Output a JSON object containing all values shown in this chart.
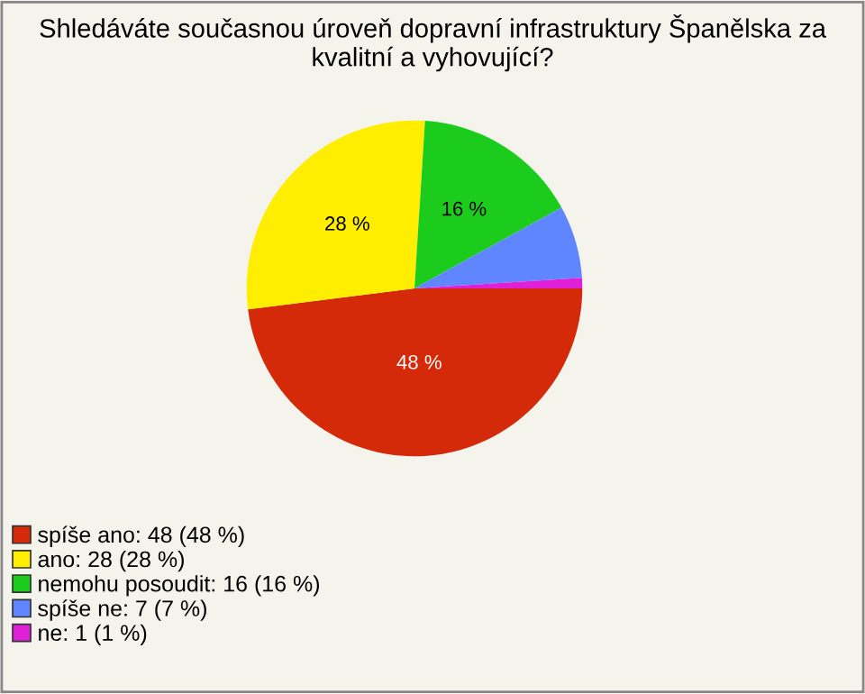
{
  "chart_data": {
    "type": "pie",
    "title": "Shledáváte současnou úroveň dopravní infrastruktury Španělska za kvalitní a vyhovující?",
    "categories": [
      "spíše ano: 48 (48 %)",
      "ano: 28 (28 %)",
      "nemohu posoudit: 16 (16 %)",
      "spíše ne: 7 (7 %)",
      "ne: 1 (1 %)"
    ],
    "values": [
      48,
      28,
      16,
      7,
      1
    ],
    "colors": [
      "#d42a0a",
      "#ffee00",
      "#1ccc1c",
      "#5f86ff",
      "#e020d8"
    ],
    "value_labels": [
      "48 %",
      "28 %",
      "16 %",
      null,
      null
    ],
    "legend": "bottom left"
  }
}
